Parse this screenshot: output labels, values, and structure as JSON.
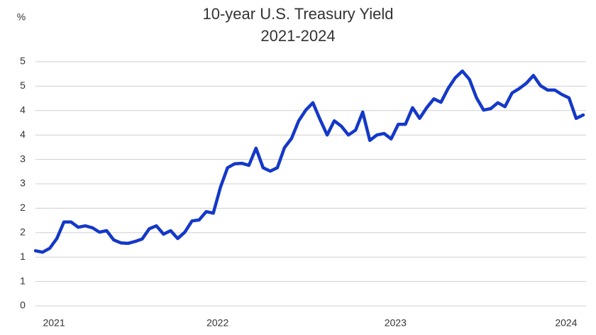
{
  "chart_data": {
    "type": "line",
    "title": "10-year U.S. Treasury Yield",
    "subtitle": "2021-2024",
    "ylabel": "%",
    "categories": [
      null,
      null,
      null,
      "2021",
      null,
      null,
      null,
      null,
      null,
      null,
      null,
      null,
      null,
      null,
      null,
      null,
      null,
      null,
      null,
      null,
      null,
      null,
      null,
      null,
      null,
      null,
      "2022",
      null,
      null,
      null,
      null,
      null,
      null,
      null,
      null,
      null,
      null,
      null,
      null,
      null,
      null,
      null,
      null,
      null,
      null,
      null,
      null,
      null,
      null,
      null,
      null,
      "2023",
      null,
      null,
      null,
      null,
      null,
      null,
      null,
      null,
      null,
      null,
      null,
      null,
      null,
      null,
      null,
      null,
      null,
      null,
      null,
      null,
      null,
      null,
      null,
      "2024",
      null,
      null
    ],
    "values": [
      1.13,
      1.1,
      1.18,
      1.38,
      1.72,
      1.72,
      1.61,
      1.64,
      1.6,
      1.51,
      1.54,
      1.35,
      1.29,
      1.28,
      1.32,
      1.37,
      1.58,
      1.64,
      1.47,
      1.54,
      1.38,
      1.51,
      1.74,
      1.76,
      1.93,
      1.9,
      2.43,
      2.83,
      2.91,
      2.92,
      2.88,
      3.23,
      2.83,
      2.76,
      2.83,
      3.24,
      3.43,
      3.79,
      4.01,
      4.16,
      3.82,
      3.5,
      3.79,
      3.68,
      3.5,
      3.6,
      3.97,
      3.39,
      3.5,
      3.53,
      3.42,
      3.72,
      3.72,
      4.06,
      3.84,
      4.06,
      4.24,
      4.17,
      4.45,
      4.67,
      4.81,
      4.64,
      4.26,
      4.01,
      4.04,
      4.16,
      4.08,
      4.36,
      4.45,
      4.56,
      4.72,
      4.51,
      4.42,
      4.42,
      4.33,
      4.26,
      3.84,
      3.91
    ],
    "color": "#1438c8",
    "ylim": [
      0,
      5
    ],
    "yticks": [
      0,
      {
        "value": 0.5,
        "label": "1"
      },
      1,
      {
        "value": 1.5,
        "label": "2"
      },
      2,
      {
        "value": 2.5,
        "label": "3"
      },
      3,
      {
        "value": 3.5,
        "label": "4"
      },
      4,
      {
        "value": 4.5,
        "label": "5"
      },
      5
    ],
    "grid": true
  }
}
